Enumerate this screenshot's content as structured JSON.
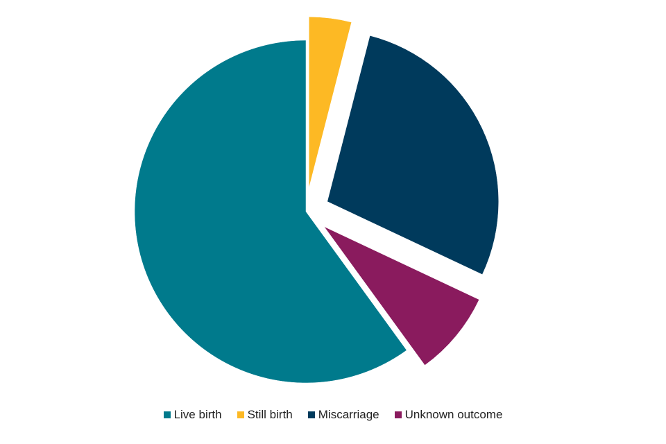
{
  "chart_data": {
    "type": "pie",
    "title": "",
    "categories": [
      "Live birth",
      "Still birth",
      "Miscarriage",
      "Unknown outcome"
    ],
    "values": [
      60,
      4,
      28,
      8
    ],
    "colors": [
      "#007A8C",
      "#FDB924",
      "#003A5C",
      "#8A1B5E"
    ],
    "exploded": [
      false,
      true,
      true,
      true
    ],
    "start_angle": "12 o'clock, clockwise from Still birth",
    "legend": "bottom"
  }
}
